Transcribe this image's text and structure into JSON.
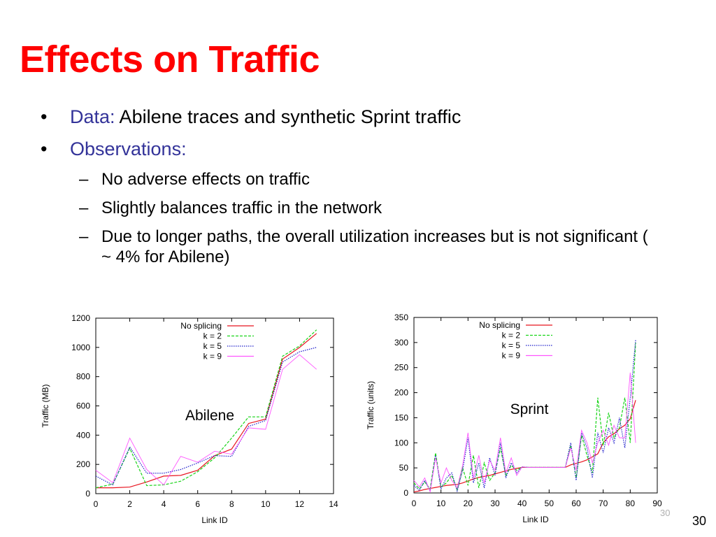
{
  "slide": {
    "title": "Effects on Traffic",
    "bullets": [
      {
        "lead": "Data:",
        "text": " Abilene traces and synthetic Sprint traffic"
      },
      {
        "lead": "Observations:",
        "text": ""
      }
    ],
    "sub_bullets": [
      "No adverse effects on traffic",
      "Slightly balances traffic in the network",
      "Due to longer paths, the overall utilization increases but is not significant ( ~ 4% for Abilene)"
    ],
    "slide_number_small": "30",
    "slide_number": "30",
    "bullet_glyph": "•",
    "dash_glyph": "–"
  },
  "chart_data": [
    {
      "type": "line",
      "annotation": "Abilene",
      "xlabel": "Link ID",
      "ylabel": "Traffic (MB)",
      "xlim": [
        0,
        14
      ],
      "ylim": [
        0,
        1200
      ],
      "xticks": [
        0,
        2,
        4,
        6,
        8,
        10,
        12,
        14
      ],
      "yticks": [
        0,
        200,
        400,
        600,
        800,
        1000,
        1200
      ],
      "legend": "top-right",
      "grid": false,
      "x": [
        0,
        1,
        2,
        3,
        4,
        5,
        6,
        7,
        8,
        9,
        10,
        11,
        12,
        13
      ],
      "series": [
        {
          "name": "No splicing",
          "color": "#e8141f",
          "dash": "solid",
          "values": [
            40,
            40,
            45,
            80,
            120,
            125,
            160,
            260,
            305,
            480,
            510,
            920,
            1000,
            1095
          ]
        },
        {
          "name": "k = 2",
          "color": "#19d419",
          "dash": "dashed",
          "values": [
            40,
            65,
            310,
            55,
            60,
            85,
            150,
            245,
            380,
            525,
            525,
            940,
            1010,
            1120
          ]
        },
        {
          "name": "k = 5",
          "color": "#2222cc",
          "dash": "dotted",
          "values": [
            120,
            60,
            320,
            140,
            140,
            165,
            210,
            260,
            255,
            460,
            500,
            900,
            970,
            1000
          ]
        },
        {
          "name": "k = 9",
          "color": "#ff55ff",
          "dash": "thin",
          "values": [
            160,
            75,
            380,
            165,
            60,
            255,
            215,
            290,
            270,
            450,
            440,
            850,
            950,
            850
          ]
        }
      ]
    },
    {
      "type": "line",
      "annotation": "Sprint",
      "xlabel": "Link ID",
      "ylabel": "Traffic (units)",
      "xlim": [
        0,
        90
      ],
      "ylim": [
        0,
        350
      ],
      "xticks": [
        0,
        10,
        20,
        30,
        40,
        50,
        60,
        70,
        80,
        90
      ],
      "yticks": [
        0,
        50,
        100,
        150,
        200,
        250,
        300,
        350
      ],
      "legend": "top-right",
      "grid": false,
      "x": [
        0,
        2,
        4,
        6,
        8,
        10,
        12,
        14,
        16,
        18,
        20,
        22,
        24,
        26,
        28,
        30,
        32,
        34,
        36,
        38,
        40,
        42,
        44,
        46,
        48,
        50,
        52,
        54,
        56,
        58,
        60,
        62,
        64,
        66,
        68,
        70,
        72,
        74,
        76,
        78,
        80,
        82
      ],
      "series": [
        {
          "name": "No splicing",
          "color": "#e8141f",
          "dash": "solid",
          "values": [
            2,
            4,
            7,
            9,
            11,
            13,
            15,
            16,
            17,
            20,
            24,
            28,
            31,
            33,
            35,
            38,
            41,
            44,
            47,
            49,
            51,
            51,
            51,
            51,
            51,
            51,
            51,
            51,
            51,
            56,
            59,
            62,
            66,
            72,
            78,
            100,
            112,
            118,
            128,
            135,
            148,
            185
          ]
        },
        {
          "name": "k = 2",
          "color": "#19d419",
          "dash": "dashed",
          "values": [
            20,
            8,
            22,
            8,
            80,
            12,
            20,
            35,
            6,
            50,
            15,
            75,
            10,
            60,
            25,
            40,
            90,
            35,
            55,
            45,
            52,
            51,
            51,
            51,
            51,
            51,
            51,
            51,
            51,
            95,
            30,
            115,
            75,
            40,
            190,
            95,
            160,
            110,
            130,
            190,
            100,
            300
          ]
        },
        {
          "name": "k = 5",
          "color": "#2222cc",
          "dash": "dotted",
          "values": [
            15,
            5,
            25,
            4,
            75,
            8,
            30,
            40,
            4,
            45,
            110,
            20,
            60,
            10,
            70,
            35,
            100,
            30,
            60,
            40,
            52,
            51,
            51,
            51,
            51,
            51,
            51,
            51,
            51,
            100,
            25,
            120,
            90,
            30,
            120,
            80,
            130,
            100,
            150,
            90,
            190,
            305
          ]
        },
        {
          "name": "k = 9",
          "color": "#ff55ff",
          "dash": "thin",
          "values": [
            25,
            12,
            30,
            2,
            70,
            20,
            50,
            25,
            10,
            55,
            120,
            30,
            75,
            20,
            65,
            45,
            110,
            40,
            70,
            35,
            52,
            51,
            51,
            51,
            51,
            51,
            51,
            51,
            51,
            90,
            45,
            125,
            100,
            60,
            100,
            125,
            95,
            135,
            110,
            110,
            240,
            100
          ]
        }
      ]
    }
  ]
}
